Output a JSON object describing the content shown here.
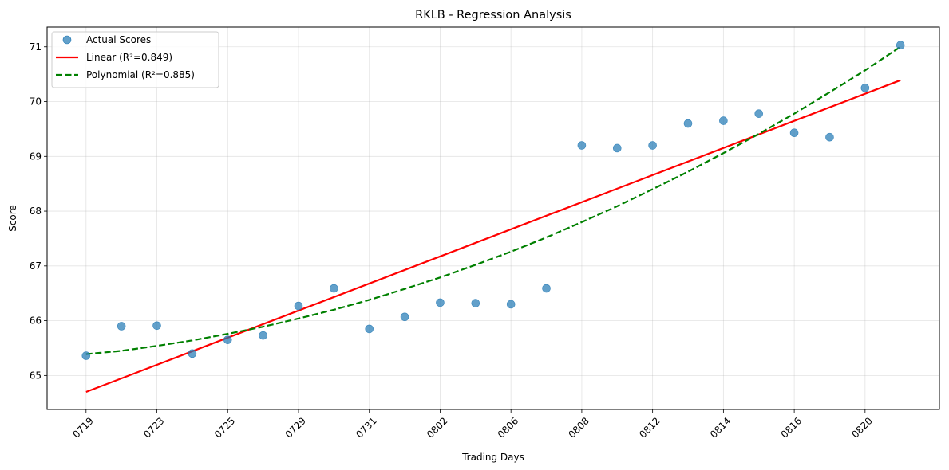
{
  "chart_data": {
    "type": "scatter",
    "title": "RKLB - Regression Analysis",
    "xlabel": "Trading Days",
    "ylabel": "Score",
    "x_tick_labels": [
      "0719",
      "0723",
      "0725",
      "0729",
      "0731",
      "0802",
      "0806",
      "0808",
      "0812",
      "0814",
      "0816",
      "0820"
    ],
    "x_tick_positions": [
      0,
      2,
      4,
      6,
      8,
      10,
      12,
      14,
      16,
      18,
      20,
      22
    ],
    "x_range": [
      -1.1,
      24.1
    ],
    "ylim": [
      64.38,
      71.36
    ],
    "y_ticks": [
      65,
      66,
      67,
      68,
      69,
      70,
      71
    ],
    "grid": true,
    "legend_position": "upper left",
    "series": [
      {
        "name": "Actual Scores",
        "kind": "scatter",
        "color": "#1f77b4",
        "x": [
          0,
          1,
          2,
          3,
          4,
          5,
          6,
          7,
          8,
          9,
          10,
          11,
          12,
          13,
          14,
          15,
          16,
          17,
          18,
          19,
          20,
          21,
          22,
          23
        ],
        "y": [
          65.36,
          65.9,
          65.91,
          65.4,
          65.65,
          65.73,
          66.27,
          66.59,
          65.85,
          66.07,
          66.33,
          66.32,
          66.3,
          66.59,
          69.2,
          69.15,
          69.2,
          69.6,
          69.65,
          69.78,
          69.43,
          69.35,
          70.25,
          71.03
        ]
      },
      {
        "name": "Linear (R²=0.849)",
        "kind": "line",
        "style": "solid",
        "color": "#ff0000",
        "x": [
          0,
          23
        ],
        "y": [
          64.7,
          70.39
        ]
      },
      {
        "name": "Polynomial (R²=0.885)",
        "kind": "line",
        "style": "dashed",
        "color": "#008000",
        "x": [
          0,
          1,
          2,
          3,
          4,
          5,
          6,
          7,
          8,
          9,
          10,
          11,
          12,
          13,
          14,
          15,
          16,
          17,
          18,
          19,
          20,
          21,
          22,
          23
        ],
        "y": [
          65.39,
          65.45,
          65.54,
          65.64,
          65.76,
          65.89,
          66.04,
          66.2,
          66.38,
          66.58,
          66.79,
          67.02,
          67.26,
          67.52,
          67.8,
          68.09,
          68.4,
          68.72,
          69.06,
          69.41,
          69.78,
          70.17,
          70.57,
          71.0
        ]
      }
    ]
  }
}
